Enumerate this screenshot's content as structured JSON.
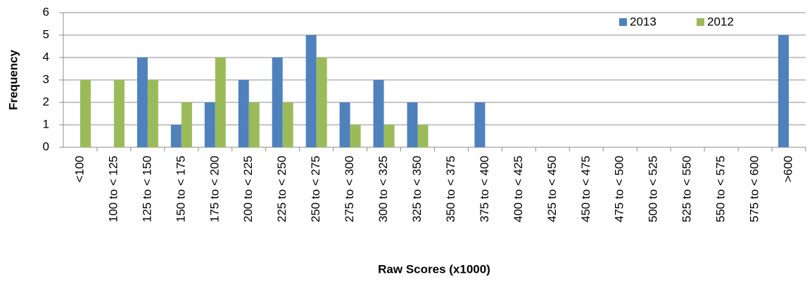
{
  "chart_data": {
    "type": "bar",
    "categories": [
      "<100",
      "100 to < 125",
      "125 to < 150",
      "150 to < 175",
      "175 to < 200",
      "200 to < 225",
      "225 to < 250",
      "250 to < 275",
      "275 to < 300",
      "300 to < 325",
      "325 to < 350",
      "350 to < 375",
      "375 to < 400",
      "400 to < 425",
      "425 to < 450",
      "450 to < 475",
      "475 to < 500",
      "500 to < 525",
      "525 to < 550",
      "550 to < 575",
      "575 to < 600",
      ">600"
    ],
    "series": [
      {
        "name": "2013",
        "color": "#4f81bd",
        "values": [
          0,
          0,
          4,
          1,
          2,
          3,
          4,
          5,
          2,
          3,
          2,
          0,
          2,
          0,
          0,
          0,
          0,
          0,
          0,
          0,
          0,
          5
        ]
      },
      {
        "name": "2012",
        "color": "#9bbb59",
        "values": [
          3,
          3,
          3,
          2,
          4,
          2,
          2,
          4,
          1,
          1,
          1,
          0,
          0,
          0,
          0,
          0,
          0,
          0,
          0,
          0,
          0,
          0
        ]
      }
    ],
    "x_label": "Raw Scores (x1000)",
    "y_label": "Frequency",
    "ylim": [
      0,
      6
    ],
    "yticks": [
      0,
      1,
      2,
      3,
      4,
      5,
      6
    ],
    "grid": true,
    "legend": "top-right"
  }
}
